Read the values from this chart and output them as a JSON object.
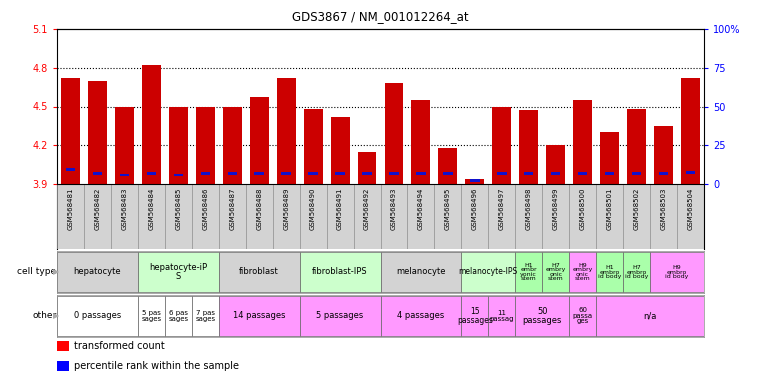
{
  "title": "GDS3867 / NM_001012264_at",
  "samples": [
    "GSM568481",
    "GSM568482",
    "GSM568483",
    "GSM568484",
    "GSM568485",
    "GSM568486",
    "GSM568487",
    "GSM568488",
    "GSM568489",
    "GSM568490",
    "GSM568491",
    "GSM568492",
    "GSM568493",
    "GSM568494",
    "GSM568495",
    "GSM568496",
    "GSM568497",
    "GSM568498",
    "GSM568499",
    "GSM568500",
    "GSM568501",
    "GSM568502",
    "GSM568503",
    "GSM568504"
  ],
  "red_values": [
    4.72,
    4.7,
    4.5,
    4.82,
    4.5,
    4.5,
    4.5,
    4.57,
    4.72,
    4.48,
    4.42,
    4.15,
    4.68,
    4.55,
    4.18,
    3.94,
    4.5,
    4.47,
    4.2,
    4.55,
    4.3,
    4.48,
    4.35,
    4.72
  ],
  "blue_positions": [
    4.01,
    3.98,
    3.97,
    3.98,
    3.97,
    3.98,
    3.98,
    3.98,
    3.98,
    3.98,
    3.98,
    3.98,
    3.98,
    3.98,
    3.98,
    3.93,
    3.98,
    3.98,
    3.98,
    3.98,
    3.98,
    3.98,
    3.98,
    3.99
  ],
  "ylim_low": 3.9,
  "ylim_high": 5.1,
  "yticks_left": [
    3.9,
    4.2,
    4.5,
    4.8,
    5.1
  ],
  "pct_ticks": [
    0,
    25,
    50,
    75,
    100
  ],
  "grid_vals": [
    4.2,
    4.5,
    4.8
  ],
  "cell_type_groups": [
    {
      "label": "hepatocyte",
      "start": 0,
      "end": 3,
      "color": "#d3d3d3",
      "fontsize": 6
    },
    {
      "label": "hepatocyte-iP\nS",
      "start": 3,
      "end": 6,
      "color": "#ccffcc",
      "fontsize": 6
    },
    {
      "label": "fibroblast",
      "start": 6,
      "end": 9,
      "color": "#d3d3d3",
      "fontsize": 6
    },
    {
      "label": "fibroblast-IPS",
      "start": 9,
      "end": 12,
      "color": "#ccffcc",
      "fontsize": 6
    },
    {
      "label": "melanocyte",
      "start": 12,
      "end": 15,
      "color": "#d3d3d3",
      "fontsize": 6
    },
    {
      "label": "melanocyte-IPS",
      "start": 15,
      "end": 17,
      "color": "#ccffcc",
      "fontsize": 5.5
    },
    {
      "label": "H1\nembr\nyonic\nstem",
      "start": 17,
      "end": 18,
      "color": "#aaffaa",
      "fontsize": 4.5
    },
    {
      "label": "H7\nembry\nonic\nstem",
      "start": 18,
      "end": 19,
      "color": "#aaffaa",
      "fontsize": 4.5
    },
    {
      "label": "H9\nembry\nonic\nstem",
      "start": 19,
      "end": 20,
      "color": "#ff99ff",
      "fontsize": 4.5
    },
    {
      "label": "H1\nembro\nid body",
      "start": 20,
      "end": 21,
      "color": "#aaffaa",
      "fontsize": 4.5
    },
    {
      "label": "H7\nembro\nid body",
      "start": 21,
      "end": 22,
      "color": "#aaffaa",
      "fontsize": 4.5
    },
    {
      "label": "H9\nembro\nid body",
      "start": 22,
      "end": 24,
      "color": "#ff99ff",
      "fontsize": 4.5
    }
  ],
  "other_groups": [
    {
      "label": "0 passages",
      "start": 0,
      "end": 3,
      "color": "#ffffff",
      "fontsize": 6
    },
    {
      "label": "5 pas\nsages",
      "start": 3,
      "end": 4,
      "color": "#ffffff",
      "fontsize": 5
    },
    {
      "label": "6 pas\nsages",
      "start": 4,
      "end": 5,
      "color": "#ffffff",
      "fontsize": 5
    },
    {
      "label": "7 pas\nsages",
      "start": 5,
      "end": 6,
      "color": "#ffffff",
      "fontsize": 5
    },
    {
      "label": "14 passages",
      "start": 6,
      "end": 9,
      "color": "#ff99ff",
      "fontsize": 6
    },
    {
      "label": "5 passages",
      "start": 9,
      "end": 12,
      "color": "#ff99ff",
      "fontsize": 6
    },
    {
      "label": "4 passages",
      "start": 12,
      "end": 15,
      "color": "#ff99ff",
      "fontsize": 6
    },
    {
      "label": "15\npassages",
      "start": 15,
      "end": 16,
      "color": "#ff99ff",
      "fontsize": 5.5
    },
    {
      "label": "11\npassag",
      "start": 16,
      "end": 17,
      "color": "#ff99ff",
      "fontsize": 5
    },
    {
      "label": "50\npassages",
      "start": 17,
      "end": 19,
      "color": "#ff99ff",
      "fontsize": 6
    },
    {
      "label": "60\npassa\nges",
      "start": 19,
      "end": 20,
      "color": "#ff99ff",
      "fontsize": 5
    },
    {
      "label": "n/a",
      "start": 20,
      "end": 24,
      "color": "#ff99ff",
      "fontsize": 6
    }
  ],
  "bar_color": "#cc0000",
  "dot_color": "#1111cc",
  "bar_width": 0.7,
  "base": 3.9,
  "bg_color": "#ffffff",
  "xtick_bg": "#d3d3d3"
}
